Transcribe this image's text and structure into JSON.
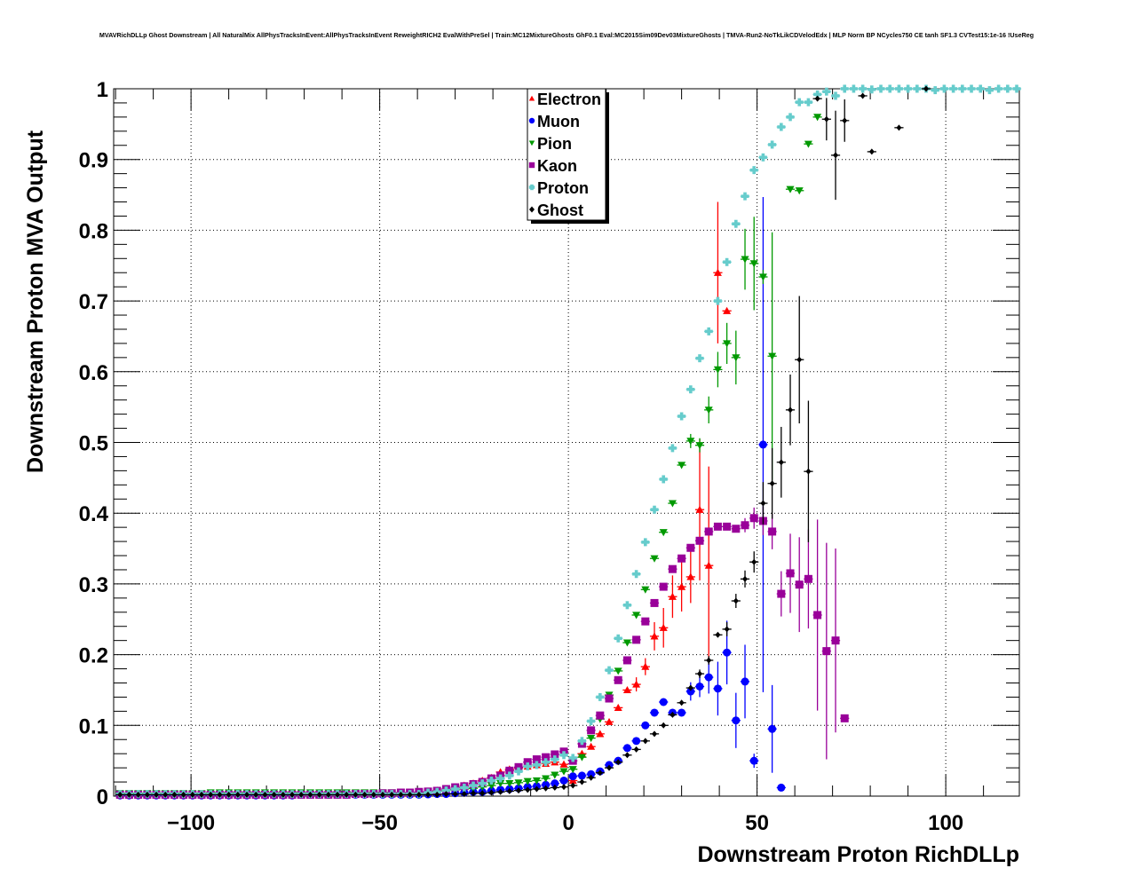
{
  "chart_data": {
    "type": "scatter",
    "title": "MVAVRichDLLp Ghost Downstream | All NaturalMix AllPhysTracksInEvent:AllPhysTracksInEvent ReweightRICH2 EvalWithPreSel | Train:MC12MixtureGhosts GhF0.1 Eval:MC2015Sim09Dev03MixtureGhosts | TMVA-Run2-NoTkLikCDVelodEdx | MLP Norm BP NCycles750 CE tanh SF1.3 CVTest15:1e-16 !UseReg",
    "xlabel": "Downstream Proton RichDLLp",
    "ylabel": "Downstream Proton MVA Output",
    "xlim": [
      -120.5,
      119.5
    ],
    "ylim": [
      0,
      1
    ],
    "grid": true,
    "legend_position": "top-center",
    "x_ticks": [
      {
        "value": -100,
        "label": "−100"
      },
      {
        "value": -50,
        "label": "−50"
      },
      {
        "value": 0,
        "label": "0"
      },
      {
        "value": 50,
        "label": "50"
      },
      {
        "value": 100,
        "label": "100"
      }
    ],
    "y_ticks": [
      {
        "value": 0,
        "label": "0"
      },
      {
        "value": 0.1,
        "label": "0.1"
      },
      {
        "value": 0.2,
        "label": "0.2"
      },
      {
        "value": 0.3,
        "label": "0.3"
      },
      {
        "value": 0.4,
        "label": "0.4"
      },
      {
        "value": 0.5,
        "label": "0.5"
      },
      {
        "value": 0.6,
        "label": "0.6"
      },
      {
        "value": 0.7,
        "label": "0.7"
      },
      {
        "value": 0.8,
        "label": "0.8"
      },
      {
        "value": 0.9,
        "label": "0.9"
      },
      {
        "value": 1,
        "label": "1"
      }
    ],
    "x_start": -118.8,
    "bin_width": 2.4,
    "series": [
      {
        "name": "Electron",
        "color": "#ff0000",
        "marker": "triangle-up",
        "y": [
          0.003,
          0.003,
          0.003,
          0.003,
          0.003,
          0.003,
          0.003,
          0.003,
          0.003,
          0.003,
          0.003,
          0.003,
          0.003,
          0.003,
          0.003,
          0.003,
          0.003,
          0.003,
          0.003,
          0.003,
          0.003,
          0.003,
          0.003,
          0.003,
          0.003,
          0.003,
          0.003,
          0.003,
          0.003,
          0.003,
          0.003,
          0.003,
          0.003,
          0.003,
          0.006,
          0.008,
          0.01,
          0.012,
          0.015,
          0.018,
          0.022,
          0.026,
          0.034,
          0.038,
          0.04,
          0.042,
          0.044,
          0.046,
          0.048,
          0.045,
          0.022,
          0.06,
          0.07,
          0.088,
          0.105,
          0.125,
          0.15,
          0.158,
          0.183,
          0.226,
          0.238,
          0.282,
          0.296,
          0.31,
          0.405,
          0.326,
          0.74,
          0.686
        ],
        "err": [
          [
            18,
            0.01
          ],
          [
            20.4,
            0.012
          ],
          [
            22.8,
            0.02
          ],
          [
            25.2,
            0.028
          ],
          [
            27.6,
            0.03
          ],
          [
            30,
            0.035
          ],
          [
            32.4,
            0.037
          ],
          [
            34.8,
            0.1
          ],
          [
            37.2,
            0.14
          ],
          [
            39.6,
            0.1
          ]
        ]
      },
      {
        "name": "Muon",
        "color": "#0000ff",
        "marker": "circle",
        "y": [
          0.001,
          0.001,
          0.001,
          0.001,
          0.001,
          0.001,
          0.001,
          0.001,
          0.001,
          0.001,
          0.001,
          0.001,
          0.001,
          0.001,
          0.001,
          0.001,
          0.001,
          0.001,
          0.001,
          0.001,
          0.002,
          0.002,
          0.002,
          0.002,
          0.002,
          0.002,
          0.002,
          0.002,
          0.002,
          0.002,
          0.002,
          0.002,
          0.002,
          0.002,
          0.0025,
          0.003,
          0.003,
          0.004,
          0.005,
          0.006,
          0.006,
          0.0075,
          0.009,
          0.01,
          0.011,
          0.013,
          0.014,
          0.016,
          0.018,
          0.022,
          0.028,
          0.029,
          0.031,
          0.035,
          0.044,
          0.05,
          0.068,
          0.078,
          0.1,
          0.118,
          0.133,
          0.118,
          0.118,
          0.148,
          0.155,
          0.168,
          0.152,
          0.203,
          0.107,
          0.162,
          0.05,
          0.497,
          0.095,
          0.012
        ],
        "err": [
          [
            32.4,
            0.013
          ],
          [
            34.8,
            0.015
          ],
          [
            37.2,
            0.023
          ],
          [
            39.6,
            0.038
          ],
          [
            42,
            0.045
          ],
          [
            44.4,
            0.039
          ],
          [
            46.8,
            0.052
          ],
          [
            49.2,
            0.01
          ],
          [
            51.6,
            0.35
          ],
          [
            54,
            0.062
          ]
        ]
      },
      {
        "name": "Pion",
        "color": "#009900",
        "marker": "triangle-down",
        "y": [
          0.004,
          0.004,
          0.004,
          0.004,
          0.004,
          0.004,
          0.004,
          0.004,
          0.004,
          0.004,
          0.005,
          0.005,
          0.005,
          0.005,
          0.005,
          0.005,
          0.005,
          0.005,
          0.005,
          0.005,
          0.005,
          0.005,
          0.005,
          0.005,
          0.005,
          0.005,
          0.005,
          0.005,
          0.005,
          0.005,
          0.005,
          0.005,
          0.005,
          0.005,
          0.006,
          0.007,
          0.008,
          0.009,
          0.01,
          0.011,
          0.013,
          0.015,
          0.018,
          0.018,
          0.019,
          0.021,
          0.022,
          0.025,
          0.03,
          0.035,
          0.038,
          0.055,
          0.082,
          0.109,
          0.143,
          0.177,
          0.217,
          0.256,
          0.292,
          0.336,
          0.373,
          0.414,
          0.468,
          0.502,
          0.496,
          0.546,
          0.603,
          0.64,
          0.62,
          0.759,
          0.753,
          0.734,
          0.622,
          null,
          0.858,
          0.856,
          0.922,
          0.96
        ],
        "err": [
          [
            32.4,
            0.01
          ],
          [
            34.8,
            0.01
          ],
          [
            37.2,
            0.019
          ],
          [
            39.6,
            0.025
          ],
          [
            42,
            0.029
          ],
          [
            44.4,
            0.038
          ],
          [
            46.8,
            0.043
          ],
          [
            49.2,
            0.066
          ],
          [
            51.6,
            0.01
          ],
          [
            54,
            0.175
          ]
        ]
      },
      {
        "name": "Kaon",
        "color": "#990099",
        "marker": "square",
        "y": [
          0.002,
          0.002,
          0.002,
          0.002,
          0.002,
          0.002,
          0.002,
          0.002,
          0.002,
          0.002,
          0.002,
          0.002,
          0.002,
          0.002,
          0.002,
          0.002,
          0.002,
          0.002,
          0.002,
          0.002,
          0.002,
          0.002,
          0.002,
          0.002,
          0.002,
          0.002,
          0.003,
          0.003,
          0.003,
          0.004,
          0.004,
          0.005,
          0.005,
          0.006,
          0.0065,
          0.0075,
          0.01,
          0.0125,
          0.014,
          0.017,
          0.02,
          0.025,
          0.029,
          0.036,
          0.041,
          0.048,
          0.052,
          0.055,
          0.059,
          0.063,
          0.05,
          0.074,
          0.093,
          0.114,
          0.138,
          0.164,
          0.192,
          0.221,
          0.247,
          0.273,
          0.296,
          0.321,
          0.336,
          0.351,
          0.361,
          0.374,
          0.381,
          0.381,
          0.378,
          0.383,
          0.393,
          0.389,
          0.374,
          0.286,
          0.315,
          0.299,
          0.307,
          0.256,
          0.205,
          0.22,
          0.11
        ],
        "err": [
          [
            46.8,
            0.01
          ],
          [
            49.2,
            0.015
          ],
          [
            51.6,
            0.02
          ],
          [
            54,
            0.025
          ],
          [
            56.4,
            0.032
          ],
          [
            58.8,
            0.056
          ],
          [
            61.2,
            0.067
          ],
          [
            63.6,
            0.07
          ],
          [
            66,
            0.135
          ],
          [
            68.4,
            0.153
          ],
          [
            70.8,
            0.13
          ]
        ]
      },
      {
        "name": "Proton",
        "color": "#66cccc",
        "marker": "plus",
        "y": [
          0.003,
          0.003,
          0.003,
          0.003,
          0.003,
          0.003,
          0.003,
          0.003,
          0.003,
          0.003,
          0.003,
          0.003,
          0.003,
          0.003,
          0.003,
          0.003,
          0.003,
          0.003,
          0.003,
          0.003,
          0.003,
          0.003,
          0.003,
          0.003,
          0.003,
          0.003,
          0.003,
          0.003,
          0.003,
          0.003,
          0.003,
          0.003,
          0.003,
          0.003,
          0.005,
          0.006,
          0.008,
          0.01,
          0.012,
          0.015,
          0.018,
          0.022,
          0.025,
          0.029,
          0.035,
          0.042,
          0.044,
          0.048,
          0.052,
          0.058,
          0.054,
          0.078,
          0.106,
          0.14,
          0.178,
          0.223,
          0.27,
          0.314,
          0.359,
          0.405,
          0.448,
          0.492,
          0.537,
          0.575,
          0.619,
          0.657,
          0.7,
          0.755,
          0.809,
          0.848,
          0.885,
          0.903,
          0.921,
          0.946,
          0.96,
          0.981,
          0.981,
          0.992,
          0.996,
          0.99,
          1.0,
          1.0,
          1.0,
          0.999,
          1.0,
          1.0,
          1.0,
          1.0,
          1.0,
          1.0,
          0.998,
          1.0,
          1.0,
          1.0,
          1.0,
          1.0,
          0.998,
          1.0,
          1.0,
          1.0
        ],
        "err": []
      },
      {
        "name": "Ghost",
        "color": "#000000",
        "marker": "diamond",
        "y": [
          0.002,
          0.002,
          0.002,
          0.002,
          0.002,
          0.002,
          0.002,
          0.002,
          0.002,
          0.002,
          0.002,
          0.002,
          0.002,
          0.002,
          0.002,
          0.002,
          0.002,
          0.002,
          0.002,
          0.002,
          0.002,
          0.002,
          0.002,
          0.002,
          0.002,
          0.002,
          0.002,
          0.002,
          0.002,
          0.002,
          0.002,
          0.002,
          0.002,
          0.002,
          0.002,
          0.002,
          0.003,
          0.003,
          0.003,
          0.004,
          0.004,
          0.005,
          0.006,
          0.007,
          0.008,
          0.009,
          0.01,
          0.011,
          0.012,
          0.013,
          0.015,
          0.02,
          0.026,
          0.033,
          0.04,
          0.048,
          0.058,
          0.066,
          0.078,
          0.088,
          0.1,
          0.115,
          0.132,
          0.153,
          0.173,
          0.192,
          0.228,
          0.236,
          0.276,
          0.307,
          0.331,
          0.414,
          0.442,
          0.472,
          0.546,
          0.617,
          0.459,
          0.986,
          0.957,
          0.906,
          0.955,
          null,
          0.99,
          0.911,
          null,
          null,
          0.945,
          null,
          null,
          1.0
        ],
        "err": [
          [
            34.8,
            0.006
          ],
          [
            37.2,
            0.006
          ],
          [
            42,
            0.01
          ],
          [
            44.4,
            0.01
          ],
          [
            46.8,
            0.012
          ],
          [
            49.2,
            0.015
          ],
          [
            51.6,
            0.03
          ],
          [
            54,
            0.05
          ],
          [
            56.4,
            0.05
          ],
          [
            58.8,
            0.05
          ],
          [
            61.2,
            0.09
          ],
          [
            63.6,
            0.1
          ],
          [
            68.4,
            0.03
          ],
          [
            70.8,
            0.063
          ],
          [
            73.2,
            0.03
          ]
        ]
      }
    ]
  }
}
